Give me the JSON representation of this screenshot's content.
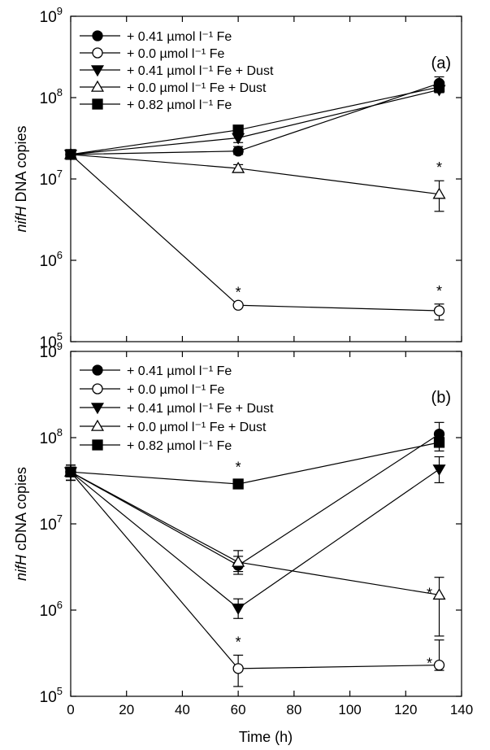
{
  "figure": {
    "xlabel": "Time (h)",
    "x_ticks": [
      "0",
      "20",
      "40",
      "60",
      "80",
      "100",
      "120",
      "140"
    ],
    "y_ticks_exponent": [
      "5",
      "6",
      "7",
      "8",
      "9"
    ],
    "y_ticks_base": "10"
  },
  "colors": {
    "axis": "#000000",
    "filled_marker": "#000000",
    "open_marker": "#ffffff"
  },
  "chart_data": [
    {
      "type": "line",
      "panel": "(a)",
      "ylabel_italic": "nifH",
      "ylabel_rest": " DNA copies",
      "yscale": "log",
      "xlim": [
        0,
        140
      ],
      "ylim": [
        100000,
        1000000000
      ],
      "x": [
        0,
        60,
        132
      ],
      "series": [
        {
          "name": "+ 0.41 µmol l⁻¹ Fe",
          "marker": "circle",
          "filled": true,
          "values": [
            20000000,
            22000000,
            150000000
          ],
          "err_lo": [
            null,
            20000000,
            135000000
          ],
          "err_hi": [
            null,
            25000000,
            180000000
          ],
          "star": [
            false,
            false,
            false
          ]
        },
        {
          "name": "+ 0.0 µmol l⁻¹ Fe",
          "marker": "circle",
          "filled": false,
          "values": [
            20000000,
            280000,
            240000
          ],
          "err_lo": [
            null,
            null,
            185000
          ],
          "err_hi": [
            null,
            null,
            290000
          ],
          "star": [
            false,
            true,
            true
          ]
        },
        {
          "name": "+ 0.41 µmol l⁻¹ Fe + Dust",
          "marker": "triangle-down",
          "filled": true,
          "values": [
            20000000,
            32000000,
            125000000
          ],
          "err_lo": [
            null,
            28000000,
            115000000
          ],
          "err_hi": [
            null,
            36000000,
            140000000
          ],
          "star": [
            false,
            false,
            false
          ]
        },
        {
          "name": "+ 0.0 µmol l⁻¹ Fe + Dust",
          "marker": "triangle-up",
          "filled": false,
          "values": [
            20000000,
            13500000,
            6500000
          ],
          "err_lo": [
            null,
            12500000,
            4000000
          ],
          "err_hi": [
            null,
            15000000,
            9500000
          ],
          "star": [
            false,
            false,
            true
          ]
        },
        {
          "name": "+ 0.82 µmol l⁻¹ Fe",
          "marker": "square",
          "filled": true,
          "values": [
            20000000,
            40000000,
            135000000
          ],
          "err_lo": [
            null,
            37000000,
            120000000
          ],
          "err_hi": [
            null,
            44000000,
            150000000
          ],
          "star": [
            false,
            false,
            false
          ]
        }
      ]
    },
    {
      "type": "line",
      "panel": "(b)",
      "ylabel_italic": "nifH",
      "ylabel_rest": " cDNA copies",
      "yscale": "log",
      "xlim": [
        0,
        140
      ],
      "ylim": [
        100000,
        1000000000
      ],
      "x": [
        0,
        60,
        132
      ],
      "series": [
        {
          "name": "+ 0.41 µmol l⁻¹ Fe",
          "marker": "circle",
          "filled": true,
          "values": [
            40000000,
            3300000,
            110000000
          ],
          "err_lo": [
            32000000,
            2600000,
            80000000
          ],
          "err_hi": [
            48000000,
            4200000,
            150000000
          ],
          "star": [
            false,
            false,
            false
          ]
        },
        {
          "name": "+ 0.0 µmol l⁻¹ Fe",
          "marker": "circle",
          "filled": false,
          "values": [
            40000000,
            210000,
            230000
          ],
          "err_lo": [
            32000000,
            130000,
            200000
          ],
          "err_hi": [
            48000000,
            300000,
            450000
          ],
          "star": [
            false,
            true,
            true
          ]
        },
        {
          "name": "+ 0.41 µmol l⁻¹ Fe + Dust",
          "marker": "triangle-down",
          "filled": true,
          "values": [
            40000000,
            1050000,
            43000000
          ],
          "err_lo": [
            32000000,
            800000,
            30000000
          ],
          "err_hi": [
            48000000,
            1350000,
            60000000
          ],
          "star": [
            false,
            false,
            false
          ]
        },
        {
          "name": "+ 0.0 µmol l⁻¹ Fe + Dust",
          "marker": "triangle-up",
          "filled": false,
          "values": [
            40000000,
            3600000,
            1500000
          ],
          "err_lo": [
            32000000,
            2800000,
            500000
          ],
          "err_hi": [
            48000000,
            4900000,
            2400000
          ],
          "star": [
            false,
            false,
            true
          ]
        },
        {
          "name": "+ 0.82 µmol l⁻¹ Fe",
          "marker": "square",
          "filled": true,
          "values": [
            40000000,
            29000000,
            88000000
          ],
          "err_lo": [
            32000000,
            26000000,
            70000000
          ],
          "err_hi": [
            48000000,
            32000000,
            105000000
          ],
          "star": [
            false,
            true,
            false
          ]
        }
      ]
    }
  ]
}
